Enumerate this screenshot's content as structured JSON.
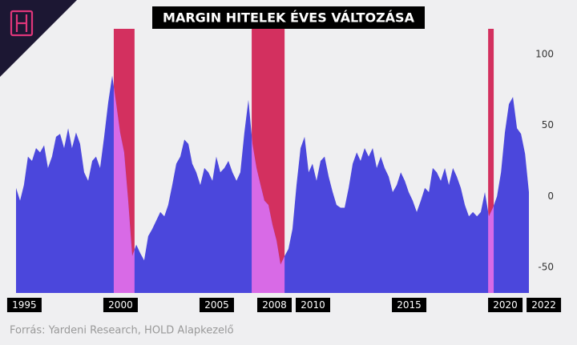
{
  "chart_data": {
    "type": "area",
    "title": "MARGIN HITELEK ÉVES VÁLTOZÁSA",
    "source": "Forrás: Yardeni Research, HOLD Alapkezelő",
    "x": [
      1995.42,
      1995.63,
      1995.83,
      1996.04,
      1996.25,
      1996.46,
      1996.67,
      1996.88,
      1997.08,
      1997.29,
      1997.5,
      1997.71,
      1997.92,
      1998.13,
      1998.33,
      1998.54,
      1998.75,
      1998.96,
      1999.17,
      1999.38,
      1999.58,
      1999.79,
      2000,
      2000.21,
      2000.42,
      2000.63,
      2000.83,
      2001.04,
      2001.25,
      2001.46,
      2001.67,
      2001.88,
      2002.08,
      2002.29,
      2002.5,
      2002.71,
      2002.92,
      2003.13,
      2003.33,
      2003.54,
      2003.75,
      2003.96,
      2004.17,
      2004.38,
      2004.58,
      2004.79,
      2005,
      2005.21,
      2005.42,
      2005.63,
      2005.83,
      2006.04,
      2006.25,
      2006.46,
      2006.67,
      2006.88,
      2007.08,
      2007.29,
      2007.5,
      2007.71,
      2007.92,
      2008.13,
      2008.33,
      2008.54,
      2008.75,
      2008.96,
      2009.17,
      2009.38,
      2009.58,
      2009.79,
      2010,
      2010.21,
      2010.42,
      2010.63,
      2010.83,
      2011.04,
      2011.25,
      2011.46,
      2011.67,
      2011.88,
      2012.08,
      2012.29,
      2012.5,
      2012.71,
      2012.92,
      2013.13,
      2013.33,
      2013.54,
      2013.75,
      2013.96,
      2014.17,
      2014.38,
      2014.58,
      2014.79,
      2015,
      2015.21,
      2015.42,
      2015.63,
      2015.83,
      2016.04,
      2016.25,
      2016.46,
      2016.67,
      2016.88,
      2017.08,
      2017.29,
      2017.5,
      2017.71,
      2017.92,
      2018.13,
      2018.33,
      2018.54,
      2018.75,
      2018.96,
      2019.17,
      2019.38,
      2019.58,
      2019.79,
      2020,
      2020.21,
      2020.42,
      2020.63,
      2020.83,
      2021.04,
      2021.25,
      2021.46,
      2021.67,
      2021.88,
      2022.08
    ],
    "series": [
      {
        "color": "#4b47dc",
        "values": [
          6,
          -3,
          8,
          28,
          25,
          34,
          31,
          36,
          20,
          28,
          42,
          44,
          34,
          48,
          34,
          45,
          37,
          17,
          11,
          25,
          28,
          20,
          42,
          66,
          85,
          65,
          45,
          31,
          -3,
          -42,
          -34,
          -40,
          -45,
          -28,
          -23,
          -17,
          -11,
          -14,
          -6,
          8,
          23,
          28,
          40,
          37,
          23,
          17,
          8,
          20,
          17,
          11,
          28,
          17,
          20,
          25,
          17,
          11,
          17,
          45,
          68,
          37,
          20,
          8,
          -3,
          -6,
          -20,
          -31,
          -48,
          -42,
          -37,
          -23,
          8,
          34,
          42,
          17,
          23,
          11,
          25,
          28,
          14,
          3,
          -6,
          -8,
          -8,
          6,
          23,
          31,
          25,
          34,
          28,
          34,
          20,
          28,
          20,
          14,
          3,
          8,
          17,
          11,
          3,
          -3,
          -11,
          -3,
          6,
          3,
          20,
          17,
          11,
          20,
          8,
          20,
          14,
          6,
          -6,
          -14,
          -11,
          -14,
          -11,
          3,
          -14,
          -8,
          0,
          17,
          45,
          65,
          70,
          48,
          44,
          30,
          3
        ]
      }
    ],
    "recessions": [
      [
        2000.5,
        2001.58
      ],
      [
        2007.67,
        2009.38
      ],
      [
        2019.96,
        2020.25
      ]
    ],
    "recession_color": "#d3305f",
    "highlight_color": "#d86ae6",
    "xlim": [
      1995.42,
      2022.08
    ],
    "xticks": [
      1995,
      2000,
      2005,
      2008,
      2010,
      2015,
      2020,
      2022
    ],
    "ylim": [
      -68,
      118
    ],
    "yticks": [
      100,
      50,
      0,
      -50
    ]
  }
}
